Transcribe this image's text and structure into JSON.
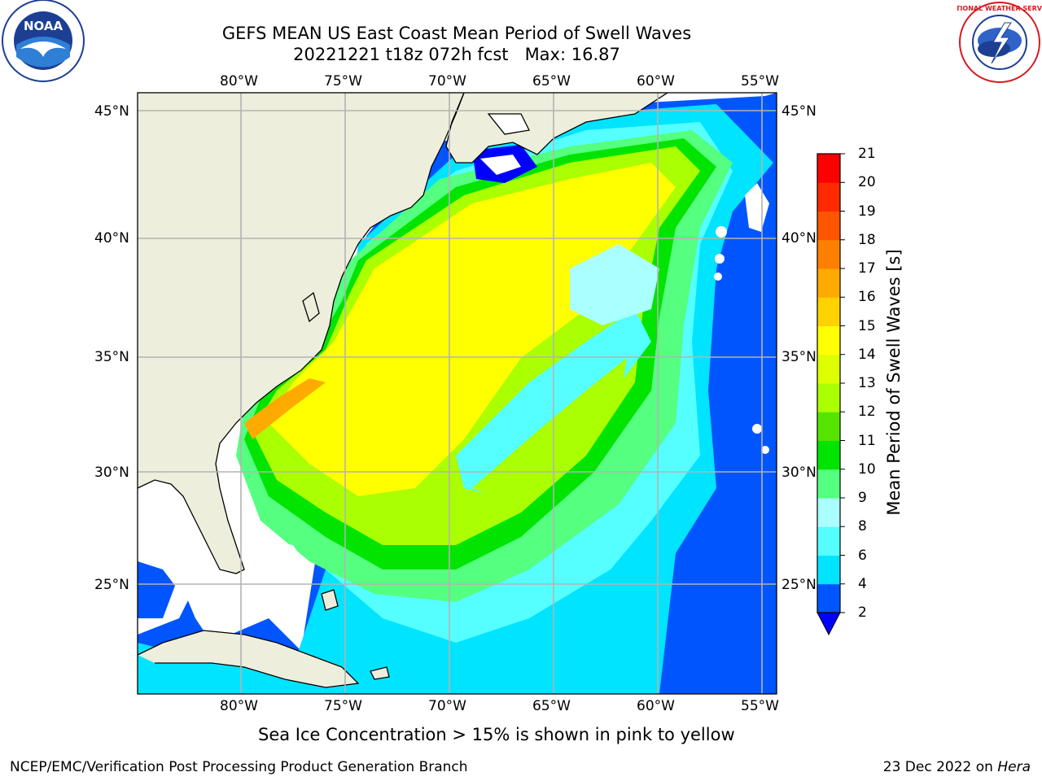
{
  "header": {
    "title_line1": "GEFS MEAN US East Coast Mean Period of Swell Waves",
    "title_line2": "20221221 t18z 072h fcst   Max: 16.87"
  },
  "logos": {
    "left": {
      "icon": "noaa-logo",
      "text": "NOAA"
    },
    "right": {
      "icon": "nws-logo",
      "text": "NATIONAL WEATHER SERVICE"
    }
  },
  "map": {
    "lon_labels": [
      "80°W",
      "75°W",
      "70°W",
      "65°W",
      "60°W",
      "55°W"
    ],
    "lat_labels": [
      "45°N",
      "40°N",
      "35°N",
      "30°N",
      "25°N"
    ],
    "colors": {
      "land": "#eeeedc",
      "ocean_no_data": "#ffffff",
      "grid": "#b3b3b3",
      "coast": "#000000"
    }
  },
  "colorbar": {
    "label": "Mean Period of Swell Waves [s]",
    "ticks": [
      "21",
      "20",
      "19",
      "18",
      "17",
      "16",
      "15",
      "14",
      "13",
      "12",
      "11",
      "10",
      "9",
      "8",
      "6",
      "4",
      "2"
    ],
    "colors_bottom_to_top": [
      "#0055ff",
      "#00e4ff",
      "#55ffff",
      "#aaffff",
      "#55ff80",
      "#00e400",
      "#55e400",
      "#aaff00",
      "#ddff00",
      "#ffff00",
      "#ffd200",
      "#ffaa00",
      "#ff8000",
      "#ff5500",
      "#ff2a00",
      "#ff0000"
    ],
    "extend_color": "#0000ff"
  },
  "caption": "Sea Ice Concentration > 15% is shown in pink to yellow",
  "footer": {
    "left": "NCEP/EMC/Verification Post Processing Product Generation Branch",
    "right_prefix": "23 Dec 2022 on ",
    "right_host": "Hera"
  }
}
